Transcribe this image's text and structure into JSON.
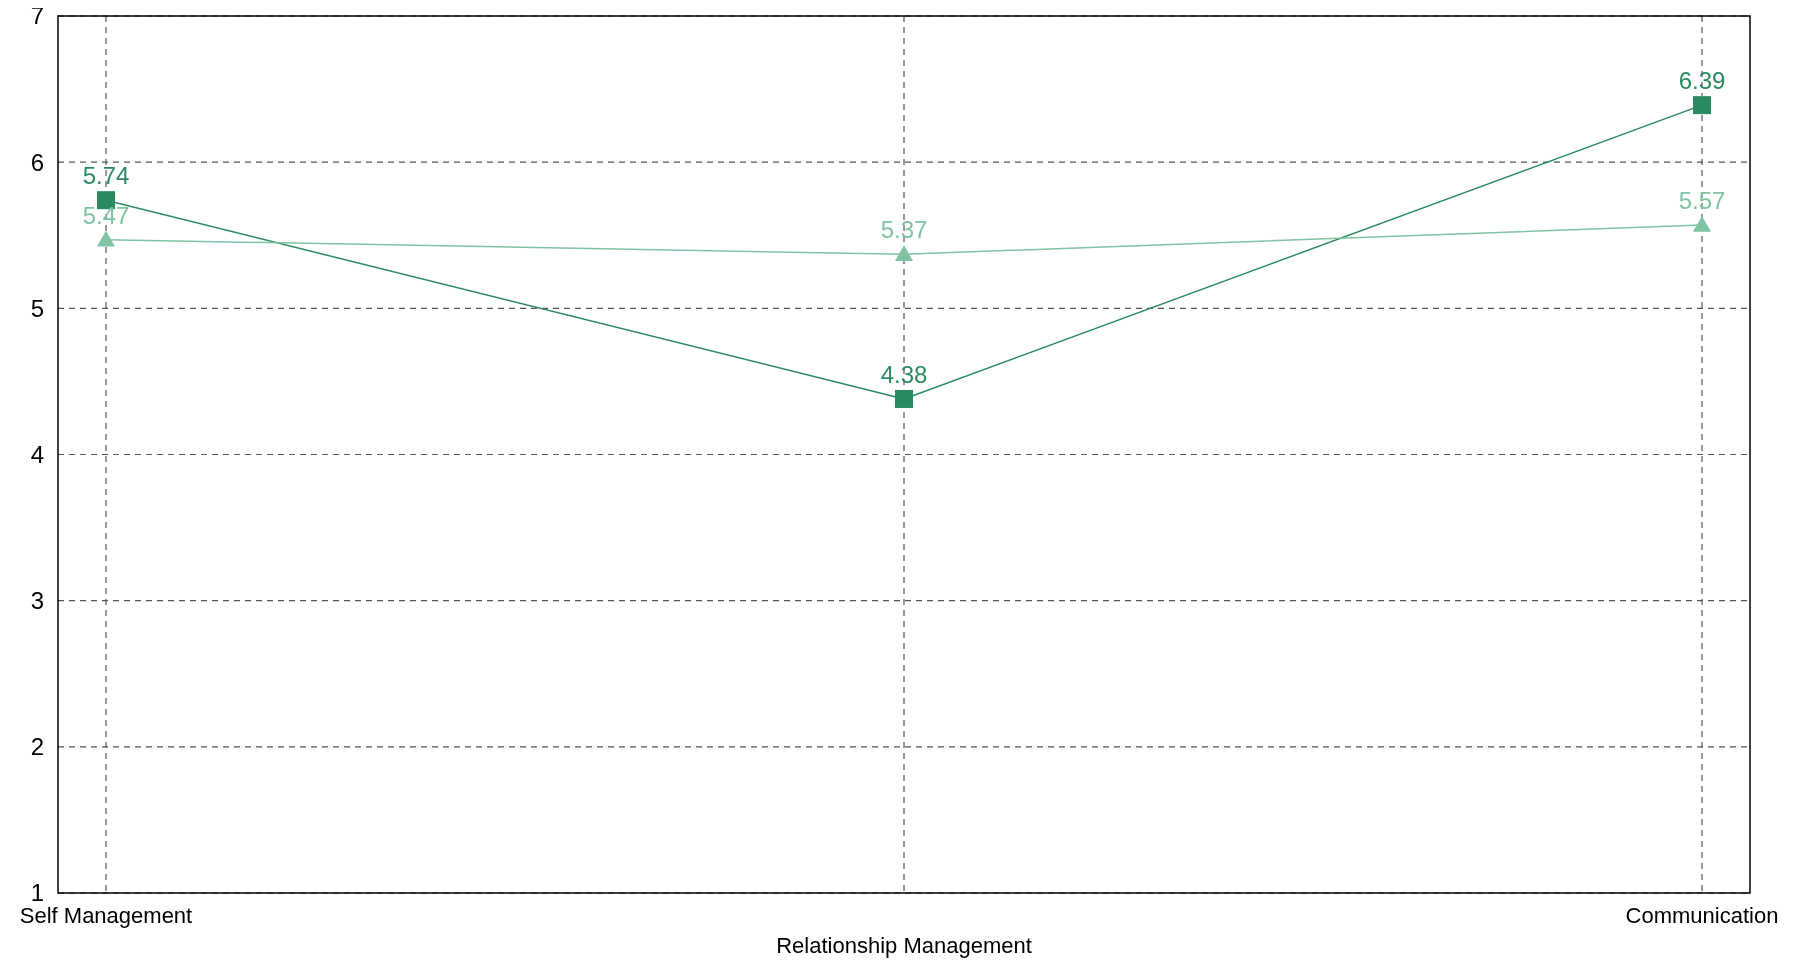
{
  "chart_data": {
    "type": "line",
    "categories": [
      "Self Management",
      "Relationship Management",
      "Communication"
    ],
    "series": [
      {
        "color": "#2a8a62",
        "values": [
          5.74,
          4.38,
          6.39
        ],
        "marker": "square"
      },
      {
        "color": "#7ec3a2",
        "values": [
          5.47,
          5.37,
          5.57
        ],
        "marker": "triangle"
      }
    ],
    "ylim": [
      1,
      7
    ],
    "yticks": [
      1,
      2,
      3,
      4,
      5,
      6,
      7
    ],
    "grid": true,
    "data_labels": true,
    "line_style": "solid"
  }
}
